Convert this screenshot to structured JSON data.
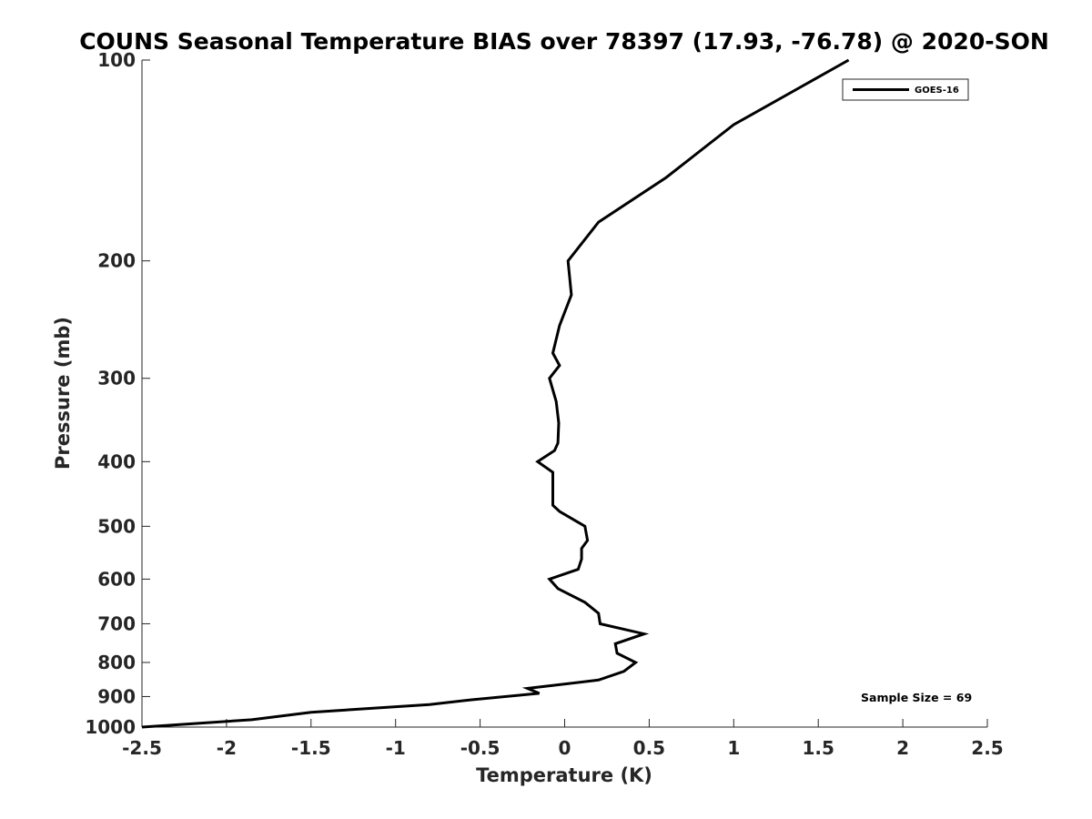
{
  "chart_data": {
    "type": "line",
    "title": "COUNS Seasonal Temperature BIAS over 78397 (17.93, -76.78) @ 2020-SON",
    "xlabel": "Temperature (K)",
    "ylabel": "Pressure (mb)",
    "xlim": [
      -2.5,
      2.5
    ],
    "ylim": [
      100,
      1000
    ],
    "yscale": "log",
    "y_reversed": true,
    "x_ticks": [
      "-2.5",
      "-2",
      "-1.5",
      "-1",
      "-0.5",
      "0",
      "0.5",
      "1",
      "1.5",
      "2",
      "2.5"
    ],
    "x_tick_values": [
      -2.5,
      -2,
      -1.5,
      -1,
      -0.5,
      0,
      0.5,
      1,
      1.5,
      2,
      2.5
    ],
    "y_ticks": [
      "100",
      "200",
      "300",
      "400",
      "500",
      "600",
      "700",
      "800",
      "900",
      "1000"
    ],
    "y_tick_values": [
      100,
      200,
      300,
      400,
      500,
      600,
      700,
      800,
      900,
      1000
    ],
    "grid": false,
    "legend_position": "top-right",
    "series": [
      {
        "name": "GOES-16",
        "color": "#000000",
        "points": [
          {
            "x": 1.68,
            "p": 100
          },
          {
            "x": 1.0,
            "p": 125
          },
          {
            "x": 0.6,
            "p": 150
          },
          {
            "x": 0.2,
            "p": 175
          },
          {
            "x": 0.02,
            "p": 200
          },
          {
            "x": 0.04,
            "p": 225
          },
          {
            "x": -0.03,
            "p": 250
          },
          {
            "x": -0.07,
            "p": 275
          },
          {
            "x": -0.03,
            "p": 287
          },
          {
            "x": -0.09,
            "p": 300
          },
          {
            "x": -0.05,
            "p": 325
          },
          {
            "x": -0.035,
            "p": 350
          },
          {
            "x": -0.04,
            "p": 375
          },
          {
            "x": -0.06,
            "p": 385
          },
          {
            "x": -0.16,
            "p": 400
          },
          {
            "x": -0.07,
            "p": 415
          },
          {
            "x": -0.07,
            "p": 450
          },
          {
            "x": -0.07,
            "p": 465
          },
          {
            "x": -0.03,
            "p": 475
          },
          {
            "x": 0.12,
            "p": 500
          },
          {
            "x": 0.135,
            "p": 525
          },
          {
            "x": 0.1,
            "p": 540
          },
          {
            "x": 0.1,
            "p": 560
          },
          {
            "x": 0.08,
            "p": 580
          },
          {
            "x": -0.09,
            "p": 600
          },
          {
            "x": -0.04,
            "p": 620
          },
          {
            "x": 0.12,
            "p": 650
          },
          {
            "x": 0.2,
            "p": 675
          },
          {
            "x": 0.21,
            "p": 700
          },
          {
            "x": 0.47,
            "p": 725
          },
          {
            "x": 0.3,
            "p": 750
          },
          {
            "x": 0.31,
            "p": 775
          },
          {
            "x": 0.42,
            "p": 800
          },
          {
            "x": 0.35,
            "p": 825
          },
          {
            "x": 0.2,
            "p": 850
          },
          {
            "x": -0.22,
            "p": 875
          },
          {
            "x": -0.15,
            "p": 890
          },
          {
            "x": -0.55,
            "p": 910
          },
          {
            "x": -0.8,
            "p": 925
          },
          {
            "x": -1.5,
            "p": 950
          },
          {
            "x": -1.85,
            "p": 975
          },
          {
            "x": -2.5,
            "p": 1000
          }
        ]
      }
    ],
    "annotation": "Sample Size = 69"
  }
}
